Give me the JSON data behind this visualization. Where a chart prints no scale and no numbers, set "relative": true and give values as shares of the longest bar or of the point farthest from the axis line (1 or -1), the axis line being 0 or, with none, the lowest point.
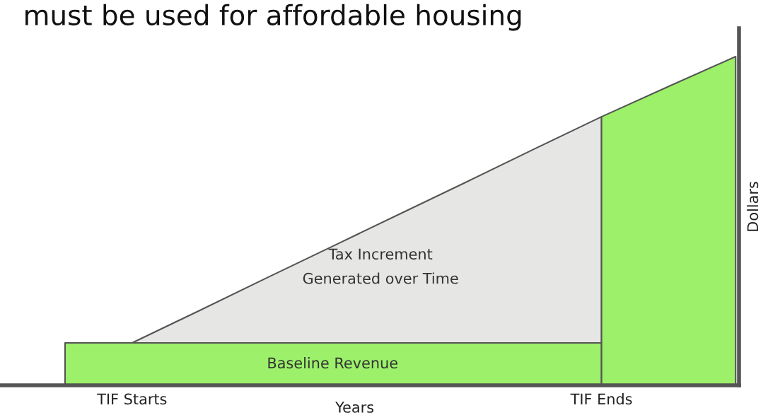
{
  "chart_data": {
    "type": "area",
    "title": "must be used for affordable housing",
    "xlabel": "Years",
    "ylabel": "Dollars",
    "relative": true,
    "categories": [
      null,
      "TIF Starts",
      null,
      null,
      null,
      null,
      null,
      null,
      "TIF Ends",
      null,
      null
    ],
    "series": [
      {
        "color": "#e6e6e4",
        "values": [
          null,
          0.129,
          0.227,
          0.326,
          0.424,
          0.522,
          0.62,
          0.719,
          0.817,
          null,
          null
        ]
      },
      {
        "color": "#9cf06a",
        "values": [
          0.129,
          0.129,
          0.129,
          0.129,
          0.129,
          0.129,
          0.129,
          0.129,
          0.129,
          null,
          null
        ]
      },
      {
        "color": "#9cf06a",
        "values": [
          null,
          null,
          null,
          null,
          null,
          null,
          null,
          null,
          0.817,
          0.909,
          1
        ]
      }
    ],
    "annotations": [
      "Tax Increment\nGenerated over Time",
      "Baseline Revenue"
    ],
    "grid": false,
    "legend": false
  }
}
